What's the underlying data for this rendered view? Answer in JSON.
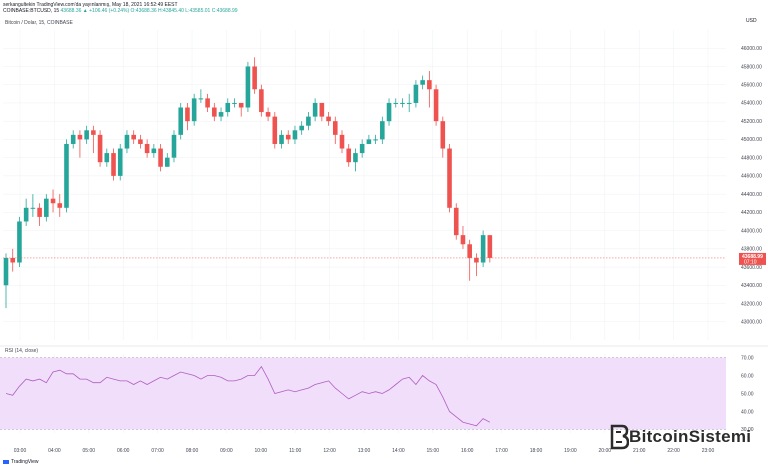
{
  "header": {
    "line1": "serkangultekin TradingView.com'da yayınlanmış, May 18, 2021 16:52:49 EEST",
    "symbol": "COINBASE:BTCUSD, 15",
    "change": "43688.36 ▲ +106.46 (+0.24%) O:43688.36 H:43845.40 L:43585.01 C:43688.99",
    "currency": "USD"
  },
  "colors": {
    "up": "#26a69a",
    "down": "#ef5350",
    "rsi_line": "#b05ec0",
    "rsi_band": "#f0defa",
    "price_label_bg": "#ef5350"
  },
  "chart_data": [
    {
      "type": "candlestick",
      "title": "Bitcoin / Dolar, 15, COINBASE",
      "price_label": "43688.99",
      "price_label_sub": "07:10",
      "ylim": [
        42800,
        46200
      ],
      "y_ticks": [
        "46000.00",
        "45800.00",
        "45600.00",
        "45400.00",
        "45200.00",
        "45000.00",
        "44800.00",
        "44600.00",
        "44400.00",
        "44200.00",
        "44000.00",
        "43800.00",
        "43600.00",
        "43400.00",
        "43200.00",
        "43000.00"
      ],
      "x_ticks": [
        "03:00",
        "04:00",
        "05:00",
        "06:00",
        "07:00",
        "08:00",
        "09:00",
        "10:00",
        "11:00",
        "12:00",
        "13:00",
        "14:00",
        "15:00",
        "16:00",
        "17:00",
        "18:00",
        "19:00",
        "20:00",
        "21:00",
        "22:00",
        "23:00"
      ],
      "candles": [
        [
          43400,
          43700,
          43150,
          43750
        ],
        [
          43700,
          43650,
          43550,
          43800
        ],
        [
          43650,
          44100,
          43600,
          44150
        ],
        [
          44100,
          44250,
          44050,
          44350
        ],
        [
          44250,
          44250,
          44150,
          44400
        ],
        [
          44250,
          44150,
          44050,
          44300
        ],
        [
          44150,
          44350,
          44100,
          44400
        ],
        [
          44350,
          44300,
          44200,
          44450
        ],
        [
          44300,
          44250,
          44150,
          44400
        ],
        [
          44250,
          44950,
          44200,
          45000
        ],
        [
          44950,
          45050,
          44900,
          45100
        ],
        [
          45050,
          45000,
          44800,
          45100
        ],
        [
          45000,
          45100,
          44950,
          45150
        ],
        [
          45100,
          45050,
          44850,
          45150
        ],
        [
          45050,
          44750,
          44700,
          45100
        ],
        [
          44750,
          44850,
          44700,
          44900
        ],
        [
          44850,
          44600,
          44550,
          44900
        ],
        [
          44600,
          44900,
          44550,
          44950
        ],
        [
          44900,
          45050,
          44850,
          45100
        ],
        [
          45050,
          45000,
          44950,
          45100
        ],
        [
          45000,
          44950,
          44900,
          45050
        ],
        [
          44950,
          44850,
          44800,
          45000
        ],
        [
          44850,
          44900,
          44800,
          44950
        ],
        [
          44900,
          44700,
          44650,
          44950
        ],
        [
          44700,
          44800,
          44700,
          44850
        ],
        [
          44800,
          45050,
          44750,
          45100
        ],
        [
          45050,
          45350,
          45000,
          45400
        ],
        [
          45350,
          45200,
          45100,
          45400
        ],
        [
          45200,
          45450,
          45150,
          45500
        ],
        [
          45450,
          45450,
          45400,
          45550
        ],
        [
          45450,
          45350,
          45300,
          45500
        ],
        [
          45350,
          45250,
          45200,
          45400
        ],
        [
          45250,
          45300,
          45200,
          45350
        ],
        [
          45300,
          45400,
          45250,
          45450
        ],
        [
          45400,
          45400,
          45350,
          45450
        ],
        [
          45400,
          45350,
          45250,
          45400
        ],
        [
          45350,
          45800,
          45300,
          45850
        ],
        [
          45800,
          45550,
          45500,
          45900
        ],
        [
          45550,
          45300,
          45250,
          45600
        ],
        [
          45300,
          45250,
          45200,
          45350
        ],
        [
          45250,
          44950,
          44900,
          45300
        ],
        [
          44950,
          45050,
          44900,
          45100
        ],
        [
          45050,
          45000,
          44950,
          45100
        ],
        [
          45000,
          45100,
          44950,
          45150
        ],
        [
          45100,
          45150,
          45050,
          45200
        ],
        [
          45150,
          45250,
          45100,
          45300
        ],
        [
          45250,
          45400,
          45200,
          45450
        ],
        [
          45400,
          45250,
          45200,
          45400
        ],
        [
          45250,
          45200,
          45150,
          45300
        ],
        [
          45200,
          45050,
          44950,
          45250
        ],
        [
          45050,
          44900,
          44850,
          45100
        ],
        [
          44900,
          44750,
          44700,
          44950
        ],
        [
          44750,
          44850,
          44650,
          44900
        ],
        [
          44850,
          44950,
          44800,
          45000
        ],
        [
          44950,
          45000,
          44950,
          45050
        ],
        [
          45000,
          45000,
          44950,
          45050
        ],
        [
          45000,
          45200,
          44950,
          45250
        ],
        [
          45200,
          45400,
          45150,
          45450
        ],
        [
          45400,
          45400,
          45350,
          45450
        ],
        [
          45400,
          45400,
          45350,
          45450
        ],
        [
          45400,
          45400,
          45300,
          45500
        ],
        [
          45400,
          45600,
          45350,
          45650
        ],
        [
          45600,
          45650,
          45550,
          45700
        ],
        [
          45650,
          45550,
          45350,
          45750
        ],
        [
          45550,
          45200,
          45150,
          45600
        ],
        [
          45200,
          44900,
          44800,
          45250
        ],
        [
          44900,
          44250,
          44200,
          44950
        ],
        [
          44250,
          43950,
          43900,
          44300
        ],
        [
          43950,
          43850,
          43800,
          44050
        ],
        [
          43850,
          43700,
          43450,
          43900
        ],
        [
          43700,
          43650,
          43500,
          43750
        ],
        [
          43650,
          43950,
          43600,
          44000
        ],
        [
          43950,
          43700,
          43650,
          43950
        ]
      ]
    },
    {
      "type": "line",
      "title": "RSI (14, close)",
      "ylim": [
        28,
        72
      ],
      "y_ticks": [
        "70.00",
        "60.00",
        "50.00",
        "40.00",
        "30.00"
      ],
      "band": [
        30,
        70
      ],
      "values": [
        50,
        49,
        54,
        58,
        57,
        58,
        56,
        62,
        63,
        61,
        61,
        58,
        58,
        56,
        56,
        59,
        58,
        57,
        57,
        55,
        57,
        55,
        57,
        59,
        58,
        60,
        62,
        61,
        60,
        58,
        60,
        60,
        59,
        57,
        57,
        58,
        60,
        60,
        65,
        58,
        50,
        51,
        52,
        51,
        52,
        53,
        55,
        56,
        57,
        53,
        50,
        47,
        49,
        51,
        50,
        51,
        50,
        52,
        55,
        58,
        59,
        55,
        60,
        57,
        55,
        48,
        40,
        37,
        34,
        33,
        32,
        36,
        34
      ]
    }
  ],
  "footer": {
    "tradingview": "TradingView",
    "logo_text": "BitcoinSistemi"
  }
}
